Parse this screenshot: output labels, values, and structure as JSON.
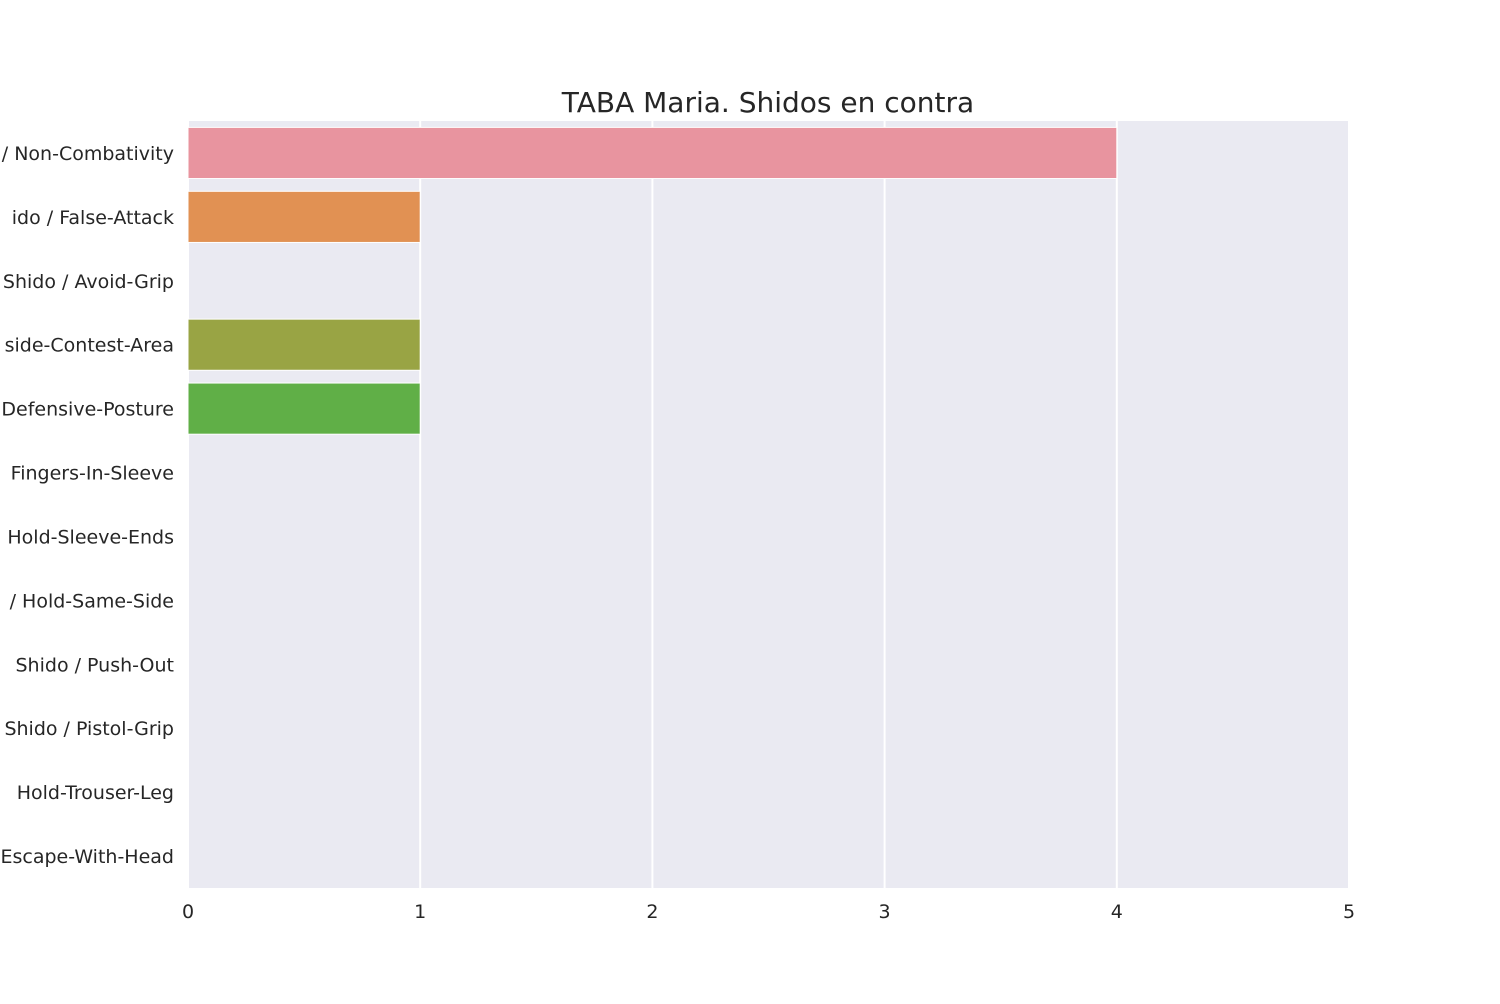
{
  "chart_data": {
    "type": "bar",
    "orientation": "horizontal",
    "title": "TABA Maria. Shidos en contra",
    "xlabel": "",
    "ylabel": "",
    "xlim": [
      0,
      5
    ],
    "xticks": [
      0,
      1,
      2,
      3,
      4,
      5
    ],
    "grid": true,
    "background": "#EAEAF2",
    "gridColor": "#FFFFFF",
    "categories": [
      "Shido / Non-Combativity",
      "Shido / False-Attack",
      "Shido / Avoid-Grip",
      "Shido / Outside-Contest-Area",
      "Shido / Defensive-Posture",
      "Shido / Fingers-In-Sleeve",
      "Shido / Hold-Sleeve-Ends",
      "Shido / Hold-Same-Side",
      "Shido / Push-Out",
      "Shido / Pistol-Grip",
      "Shido / Hold-Trouser-Leg",
      "Shido / Escape-With-Head"
    ],
    "tick_labels_visible": [
      "/ Non-Combativity",
      "ido / False-Attack",
      "Shido / Avoid-Grip",
      "side-Contest-Area",
      "Defensive-Posture",
      "Fingers-In-Sleeve",
      "Hold-Sleeve-Ends",
      "/ Hold-Same-Side",
      "Shido / Push-Out",
      "Shido / Pistol-Grip",
      "Hold-Trouser-Leg",
      "Escape-With-Head"
    ],
    "values": [
      4,
      1,
      0,
      1,
      1,
      0,
      0,
      0,
      0,
      0,
      0,
      0
    ],
    "colors": [
      "#E8949F",
      "#E19153",
      "#B29F4D",
      "#99A444",
      "#60AF47",
      "#56AE8B",
      "#5AAC9E",
      "#5CA9AE",
      "#60A5C6",
      "#7F9CE6",
      "#C795E5",
      "#E588D9"
    ]
  }
}
